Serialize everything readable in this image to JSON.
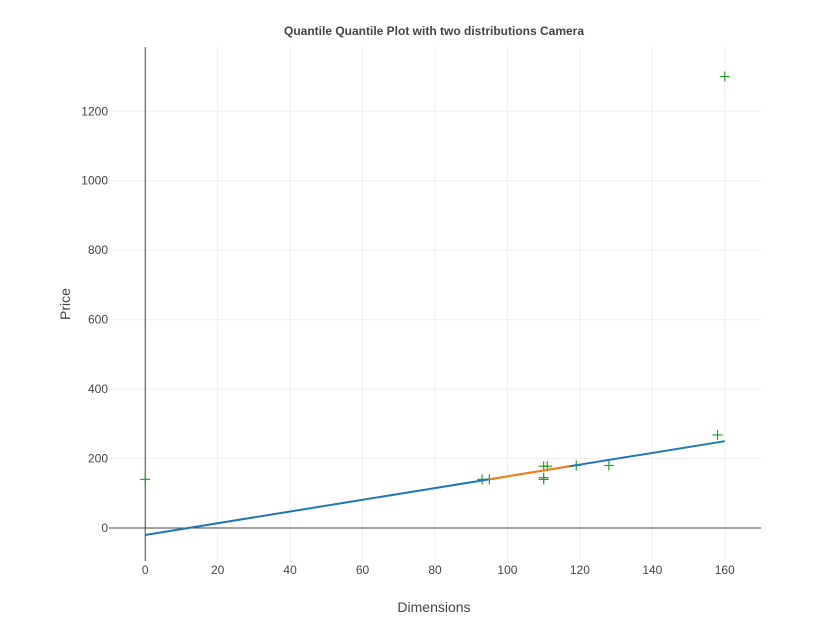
{
  "chart_data": {
    "type": "scatter",
    "title": "Quantile Quantile Plot with two distributions Camera",
    "xlabel": "Dimensions",
    "ylabel": "Price",
    "xlim": [
      -10,
      170
    ],
    "ylim": [
      -95,
      1385
    ],
    "x_ticks": [
      0,
      20,
      40,
      60,
      80,
      100,
      120,
      140,
      160
    ],
    "y_ticks": [
      0,
      200,
      400,
      600,
      800,
      1000,
      1200
    ],
    "grid": true,
    "legend": "none",
    "series": [
      {
        "type": "scatter",
        "marker": "cross",
        "color": "#2ca02c",
        "x": [
          0,
          93,
          95,
          110,
          110,
          110,
          111,
          119,
          128,
          158,
          160
        ],
        "y": [
          140,
          140,
          140,
          140,
          145,
          178,
          178,
          180,
          180,
          268,
          1300
        ]
      },
      {
        "type": "line",
        "color": "#1f77b4",
        "x": [
          0,
          160
        ],
        "y": [
          -20,
          250
        ]
      },
      {
        "type": "line",
        "color": "#ff7f0e",
        "x": [
          95,
          117
        ],
        "y": [
          140,
          178
        ]
      }
    ]
  }
}
